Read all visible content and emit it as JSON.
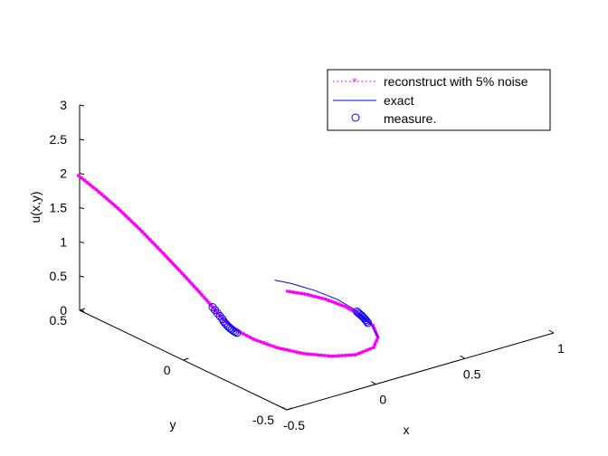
{
  "chart_data": {
    "type": "line",
    "projection": "3d",
    "xlabel": "x",
    "ylabel": "y",
    "zlabel": "u(x,y)",
    "xlim": [
      -0.5,
      1
    ],
    "ylim": [
      -0.5,
      0.5
    ],
    "zlim": [
      0,
      3
    ],
    "x_ticks": [
      "-0.5",
      "0",
      "0.5",
      "1"
    ],
    "y_ticks": [
      "-0.5",
      "0",
      "0.5"
    ],
    "z_ticks": [
      "0",
      "0.5",
      "1",
      "1.5",
      "2",
      "2.5",
      "3"
    ],
    "grid": false,
    "legend_position": "top-right",
    "series": [
      {
        "name": "reconstruct with 5% noise",
        "style": "dotted-star",
        "color": "#ff00ff",
        "points": [
          [
            -0.53,
            0.48,
            2.02
          ],
          [
            -0.5,
            0.42,
            1.88
          ],
          [
            -0.46,
            0.35,
            1.68
          ],
          [
            -0.42,
            0.28,
            1.45
          ],
          [
            -0.38,
            0.2,
            1.18
          ],
          [
            -0.34,
            0.12,
            0.9
          ],
          [
            -0.31,
            0.05,
            0.66
          ],
          [
            -0.29,
            -0.01,
            0.46
          ],
          [
            -0.26,
            -0.05,
            0.33
          ],
          [
            -0.22,
            -0.1,
            0.24
          ],
          [
            -0.16,
            -0.16,
            0.16
          ],
          [
            -0.08,
            -0.22,
            0.1
          ],
          [
            0.02,
            -0.27,
            0.06
          ],
          [
            0.12,
            -0.3,
            0.05
          ],
          [
            0.22,
            -0.3,
            0.08
          ],
          [
            0.28,
            -0.27,
            0.14
          ],
          [
            0.31,
            -0.22,
            0.22
          ],
          [
            0.3,
            -0.17,
            0.3
          ],
          [
            0.27,
            -0.12,
            0.38
          ],
          [
            0.22,
            -0.07,
            0.45
          ],
          [
            0.16,
            -0.02,
            0.5
          ],
          [
            0.1,
            0.02,
            0.53
          ]
        ]
      },
      {
        "name": "exact",
        "style": "solid",
        "color": "#0000ff",
        "points": [
          [
            0.28,
            -0.27,
            0.14
          ],
          [
            0.3,
            -0.22,
            0.24
          ],
          [
            0.29,
            -0.16,
            0.36
          ],
          [
            0.25,
            -0.1,
            0.47
          ],
          [
            0.19,
            -0.04,
            0.56
          ],
          [
            0.12,
            0.01,
            0.64
          ],
          [
            0.06,
            0.04,
            0.69
          ]
        ]
      },
      {
        "name": "measure.",
        "style": "circle-markers",
        "color": "#0000ff",
        "points": [
          [
            -0.3,
            0.03,
            0.58
          ],
          [
            -0.298,
            0.02,
            0.55
          ],
          [
            -0.296,
            0.01,
            0.52
          ],
          [
            -0.294,
            0.0,
            0.49
          ],
          [
            -0.292,
            -0.01,
            0.46
          ],
          [
            -0.29,
            -0.015,
            0.43
          ],
          [
            -0.288,
            -0.02,
            0.41
          ],
          [
            -0.285,
            -0.025,
            0.39
          ],
          [
            -0.282,
            -0.03,
            0.37
          ],
          [
            -0.278,
            -0.035,
            0.35
          ],
          [
            -0.274,
            -0.04,
            0.335
          ],
          [
            -0.27,
            -0.045,
            0.32
          ],
          [
            -0.266,
            -0.05,
            0.31
          ],
          [
            -0.262,
            -0.055,
            0.3
          ],
          [
            0.305,
            -0.2,
            0.23
          ],
          [
            0.305,
            -0.195,
            0.245
          ],
          [
            0.304,
            -0.19,
            0.26
          ],
          [
            0.303,
            -0.185,
            0.275
          ],
          [
            0.301,
            -0.18,
            0.29
          ],
          [
            0.299,
            -0.175,
            0.305
          ],
          [
            0.296,
            -0.17,
            0.32
          ],
          [
            0.293,
            -0.165,
            0.335
          ],
          [
            0.29,
            -0.16,
            0.35
          ]
        ]
      }
    ]
  }
}
